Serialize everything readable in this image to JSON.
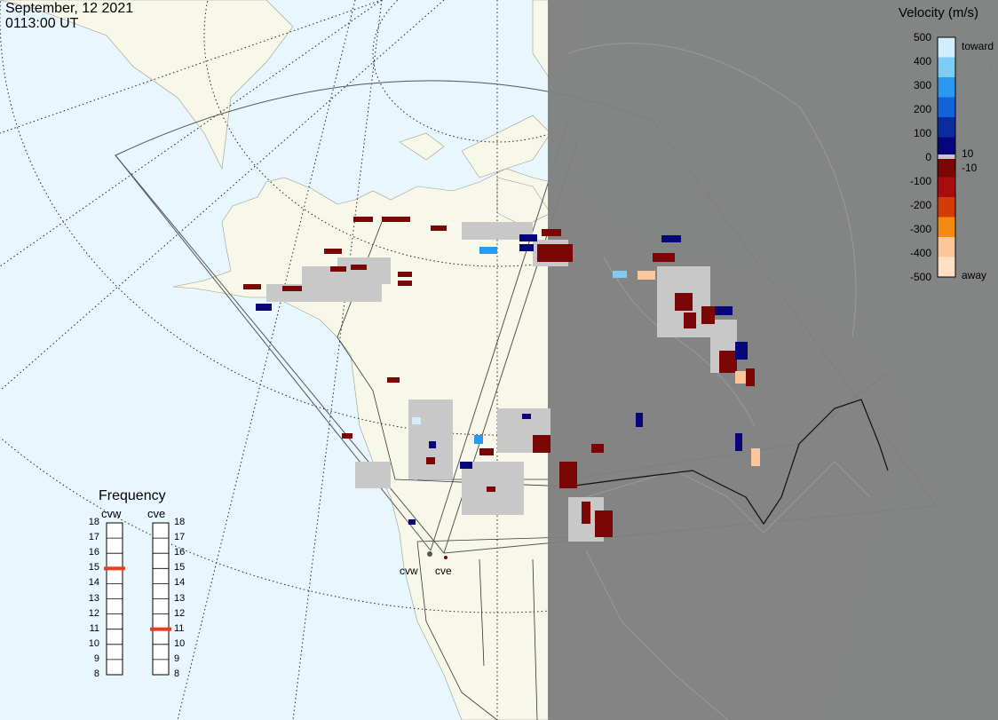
{
  "header": {
    "date": "September, 12 2021",
    "time": "0113:00 UT"
  },
  "legend": {
    "title": "Velocity (m/s)",
    "ticks": [
      "500",
      "400",
      "300",
      "200",
      "100",
      "0",
      "-100",
      "-200",
      "-300",
      "-400",
      "-500"
    ],
    "toward_label": "toward",
    "away_label": "away",
    "small_pos": "10",
    "small_neg": "-10",
    "colors": [
      "#d2eefc",
      "#7fcbf4",
      "#2a9af0",
      "#1262d8",
      "#0a2c9c",
      "#06067a",
      "#7a0606",
      "#a80c0c",
      "#d43b08",
      "#f58a10",
      "#fcc69a",
      "#fde0c4"
    ]
  },
  "frequency": {
    "title": "Frequency",
    "radars": [
      {
        "name": "cvw",
        "value_mhz": 15
      },
      {
        "name": "cve",
        "value_mhz": 11
      }
    ],
    "scale": [
      "18",
      "17",
      "16",
      "15",
      "14",
      "13",
      "12",
      "11",
      "10",
      "9",
      "8"
    ],
    "marker_color": "#e8401c"
  },
  "map": {
    "ocean_color": "#e8f6fe",
    "land_color": "#f8f8ea",
    "night_color": "#7f7f7f",
    "stations": [
      {
        "name": "cvw"
      },
      {
        "name": "cve"
      }
    ],
    "scatter_color": "#c8c8c8"
  }
}
